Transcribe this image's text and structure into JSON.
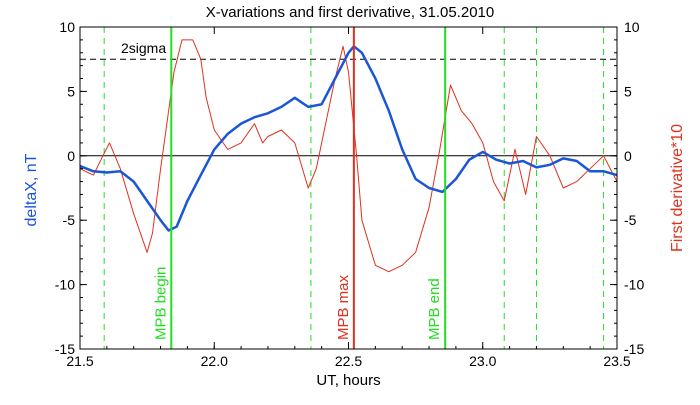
{
  "chart_data": {
    "type": "line",
    "title": "X-variations and first derivative, 31.05.2010",
    "xlabel": "UT, hours",
    "ylabel_left": "deltaX, nT",
    "ylabel_right": "First derivative*10",
    "xlim": [
      21.5,
      23.5
    ],
    "ylim_left": [
      -15,
      10
    ],
    "ylim_right": [
      -15,
      10
    ],
    "xticks": [
      21.5,
      22.0,
      22.5,
      23.0,
      23.5
    ],
    "xtick_labels": [
      "21.5",
      "22.0",
      "22.5",
      "23.0",
      "23.5"
    ],
    "yticks_left": [
      -15,
      -10,
      -5,
      0,
      5,
      10
    ],
    "ytick_labels_left": [
      "-15",
      "-10",
      "-5",
      "0",
      "5",
      "10"
    ],
    "yticks_right": [
      -15,
      -10,
      -5,
      0,
      5,
      10
    ],
    "ytick_labels_right": [
      "-15",
      "-10",
      "-5",
      "0",
      "5",
      "10"
    ],
    "threshold": {
      "label": "2sigma",
      "value": 7.5
    },
    "zero_line": 0,
    "colors": {
      "deltaX": "#1a56d6",
      "derivative": "#e0301e",
      "event_green": "#22dd22",
      "event_red": "#e0301e",
      "axis": "#000000",
      "ylabel_left": "#1a56d6",
      "ylabel_right": "#e0301e"
    },
    "dashed_markers": [
      21.59,
      22.36,
      23.08,
      23.2,
      23.45
    ],
    "events": [
      {
        "label": "MPB begin",
        "x": 21.84,
        "color": "#22dd22"
      },
      {
        "label": "MPB max",
        "x": 22.52,
        "color": "#e0301e"
      },
      {
        "label": "MPB end",
        "x": 22.86,
        "color": "#22dd22"
      }
    ],
    "series": [
      {
        "key": "deltaX",
        "color": "#1a56d6",
        "axis": "left",
        "x": [
          21.5,
          21.55,
          21.6,
          21.65,
          21.7,
          21.75,
          21.8,
          21.83,
          21.86,
          21.9,
          21.95,
          22.0,
          22.05,
          22.1,
          22.15,
          22.2,
          22.25,
          22.3,
          22.35,
          22.4,
          22.45,
          22.5,
          22.52,
          22.55,
          22.6,
          22.65,
          22.7,
          22.75,
          22.8,
          22.85,
          22.9,
          22.95,
          23.0,
          23.05,
          23.1,
          23.15,
          23.2,
          23.25,
          23.3,
          23.35,
          23.4,
          23.45,
          23.5
        ],
        "y": [
          -0.8,
          -1.2,
          -1.3,
          -1.2,
          -2.0,
          -3.5,
          -5.0,
          -5.8,
          -5.5,
          -3.5,
          -1.5,
          0.5,
          1.7,
          2.5,
          3.0,
          3.3,
          3.8,
          4.5,
          3.8,
          4.0,
          6.0,
          8.0,
          8.5,
          8.0,
          6.0,
          3.5,
          0.5,
          -1.8,
          -2.5,
          -2.8,
          -1.8,
          -0.3,
          0.3,
          -0.3,
          -0.6,
          -0.4,
          -0.9,
          -0.7,
          -0.2,
          -0.4,
          -1.2,
          -1.2,
          -1.5
        ]
      },
      {
        "key": "derivative",
        "color": "#e0301e",
        "axis": "right",
        "x": [
          21.5,
          21.55,
          21.59,
          21.61,
          21.65,
          21.7,
          21.75,
          21.77,
          21.8,
          21.85,
          21.88,
          21.92,
          21.95,
          21.97,
          22.0,
          22.05,
          22.1,
          22.15,
          22.18,
          22.2,
          22.25,
          22.3,
          22.35,
          22.38,
          22.42,
          22.45,
          22.48,
          22.5,
          22.53,
          22.55,
          22.6,
          22.65,
          22.7,
          22.75,
          22.8,
          22.84,
          22.88,
          22.92,
          22.96,
          23.0,
          23.04,
          23.08,
          23.12,
          23.16,
          23.2,
          23.25,
          23.3,
          23.35,
          23.4,
          23.45,
          23.5
        ],
        "y": [
          -1.0,
          -1.5,
          0.2,
          1.0,
          -1.0,
          -4.5,
          -7.5,
          -6.0,
          -1.0,
          6.5,
          9.0,
          9.0,
          7.5,
          4.5,
          2.0,
          0.5,
          1.0,
          2.5,
          1.0,
          1.5,
          2.0,
          1.0,
          -2.5,
          -1.0,
          3.0,
          6.0,
          8.5,
          6.5,
          0.0,
          -5.0,
          -8.5,
          -9.0,
          -8.5,
          -7.5,
          -4.0,
          0.5,
          5.5,
          3.5,
          2.5,
          1.0,
          -2.0,
          -3.5,
          0.5,
          -3.0,
          1.5,
          0.0,
          -2.5,
          -2.0,
          -1.0,
          0.0,
          -2.0
        ]
      }
    ]
  }
}
